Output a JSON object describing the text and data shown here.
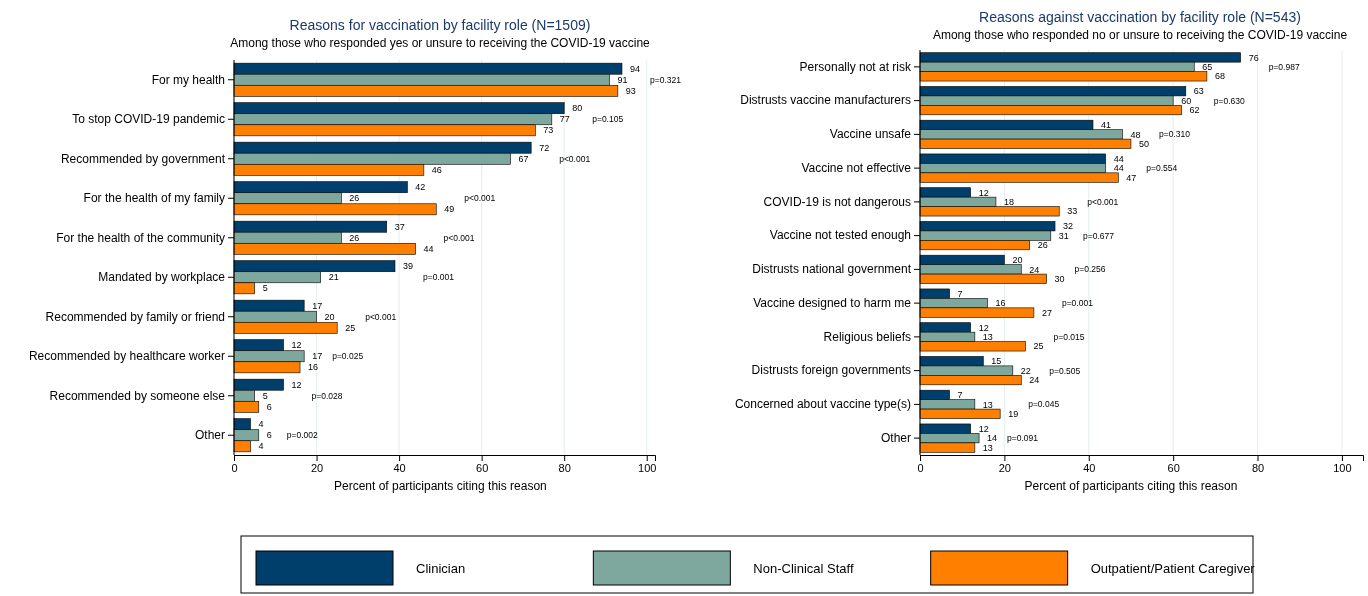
{
  "chart_data": [
    {
      "type": "bar",
      "orientation": "horizontal",
      "title": "Reasons for vaccination by facility role (N=1509)",
      "subtitle": "Among those who responded yes or unsure to receiving the COVID-19 vaccine",
      "xlabel": "Percent of participants citing this reason",
      "categories": [
        "For my health",
        "To stop COVID-19 pandemic",
        "Recommended by government",
        "For the health of my family",
        "For the health of the community",
        "Mandated by workplace",
        "Recommended by family or friend",
        "Recommended by healthcare worker",
        "Recommended by someone else",
        "Other"
      ],
      "series": [
        {
          "name": "Clinician",
          "color": "#003f6b",
          "values": [
            94,
            80,
            72,
            42,
            37,
            39,
            17,
            12,
            12,
            4
          ]
        },
        {
          "name": "Non-Clinical Staff",
          "color": "#7ea89d",
          "values": [
            91,
            77,
            67,
            26,
            26,
            21,
            20,
            17,
            5,
            6
          ]
        },
        {
          "name": "Outpatient/Patient Caregiver",
          "color": "#ff7f00",
          "values": [
            93,
            73,
            46,
            49,
            44,
            5,
            25,
            16,
            6,
            4
          ]
        }
      ],
      "xlim": [
        0,
        102
      ],
      "xticks": [
        0,
        20,
        40,
        60,
        80,
        100
      ],
      "grid": "x",
      "data_labels": true,
      "legend": "bottom",
      "annotations": [
        "p=0.321",
        "p=0.105",
        "p<0.001",
        "p<0.001",
        "p<0.001",
        "p=0.001",
        "p<0.001",
        "p=0.025",
        "p=0.028",
        "p=0.002"
      ]
    },
    {
      "type": "bar",
      "orientation": "horizontal",
      "title": "Reasons against vaccination by facility role (N=543)",
      "subtitle": "Among those who responded no or unsure to receiving the COVID-19 vaccine",
      "xlabel": "Percent of participants citing this reason",
      "categories": [
        "Personally not at risk",
        "Distrusts vaccine manufacturers",
        "Vaccine unsafe",
        "Vaccine not effective",
        "COVID-19 is not dangerous",
        "Vaccine not tested enough",
        "Distrusts national government",
        "Vaccine designed to harm me",
        "Religious beliefs",
        "Distrusts foreign governments",
        "Concerned about vaccine type(s)",
        "Other"
      ],
      "series": [
        {
          "color": "#003f6b",
          "values": [
            76,
            63,
            41,
            44,
            12,
            32,
            20,
            7,
            12,
            15,
            7,
            12
          ]
        },
        {
          "color": "#7ea89d",
          "values": [
            65,
            60,
            48,
            44,
            18,
            31,
            24,
            16,
            13,
            22,
            13,
            14
          ]
        },
        {
          "color": "#ff7f00",
          "values": [
            68,
            62,
            50,
            47,
            33,
            26,
            30,
            27,
            25,
            24,
            19,
            13
          ]
        }
      ],
      "xlim": [
        0,
        105
      ],
      "xticks": [
        0,
        20,
        40,
        60,
        80,
        100
      ],
      "grid": "x",
      "data_labels": true,
      "annotations": [
        "p=0.987",
        "p=0.630",
        "p=0.310",
        "p=0.554",
        "p<0.001",
        "p=0.677",
        "p=0.256",
        "p=0.001",
        "p=0.015",
        "p=0.505",
        "p=0.045",
        "p=0.091"
      ]
    }
  ]
}
